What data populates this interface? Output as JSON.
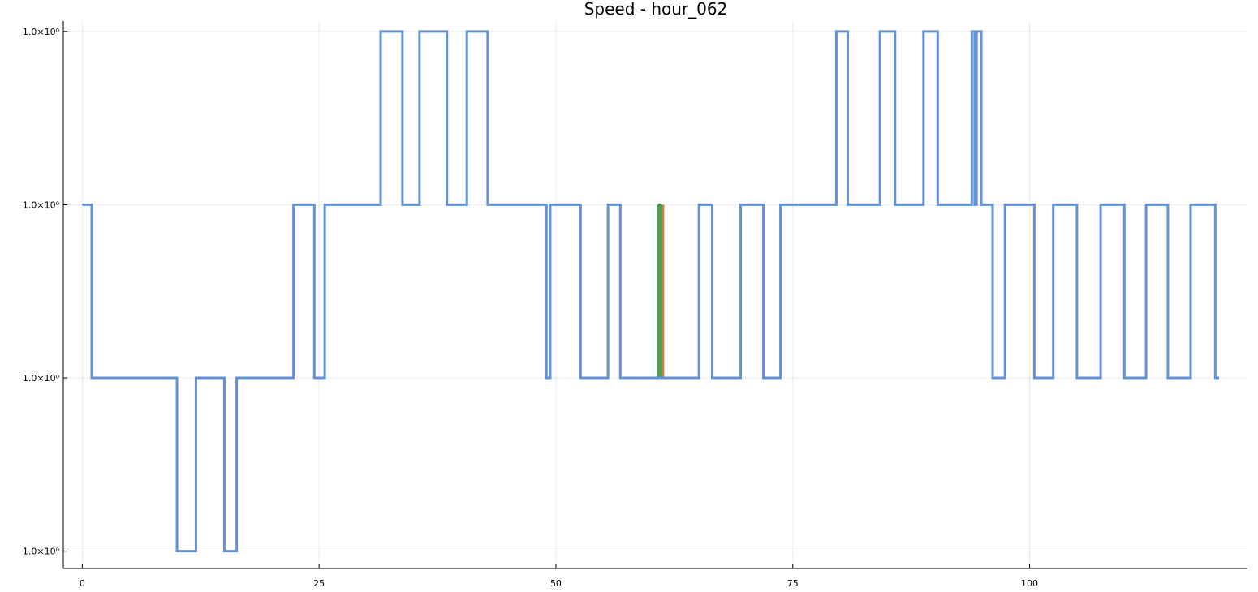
{
  "chart_data": {
    "type": "line",
    "title": "Speed - hour_062",
    "xlabel": "",
    "ylabel": "",
    "xlim": [
      -2,
      123
    ],
    "x_ticks": [
      0,
      25,
      50,
      75,
      100
    ],
    "x_tick_labels": [
      "0",
      "25",
      "50",
      "75",
      "100"
    ],
    "y_scale": "level",
    "y_ticks": [
      0,
      1,
      2,
      3
    ],
    "y_tick_labels": [
      "1.0×10⁰",
      "1.0×10⁰",
      "1.0×10⁰",
      "1.0×10⁰"
    ],
    "ylim": [
      -0.1,
      3.06
    ],
    "grid": true,
    "legend": "none",
    "series": [
      {
        "color": "#e26f46",
        "segments": [
          [
            61.0,
            61.3,
            2,
            1
          ]
        ]
      },
      {
        "color": "#3da44d",
        "segments": [
          [
            60.8,
            61.1,
            1,
            2
          ]
        ]
      },
      {
        "color": "#6392d6",
        "steps": [
          [
            0,
            2
          ],
          [
            1,
            1
          ],
          [
            10,
            0
          ],
          [
            12,
            1
          ],
          [
            15,
            0
          ],
          [
            16.3,
            1
          ],
          [
            22.3,
            2
          ],
          [
            24.5,
            1
          ],
          [
            25.6,
            2
          ],
          [
            31.5,
            3
          ],
          [
            33.8,
            2
          ],
          [
            35.6,
            3
          ],
          [
            38.5,
            2
          ],
          [
            40.6,
            3
          ],
          [
            42.8,
            2
          ],
          [
            49,
            1
          ],
          [
            49.4,
            2
          ],
          [
            52.6,
            1
          ],
          [
            55.5,
            2
          ],
          [
            56.8,
            1
          ],
          [
            65.1,
            2
          ],
          [
            66.5,
            1
          ],
          [
            69.5,
            2
          ],
          [
            71.9,
            1
          ],
          [
            73.7,
            2
          ],
          [
            79.6,
            3
          ],
          [
            80.8,
            2
          ],
          [
            84.2,
            3
          ],
          [
            85.8,
            2
          ],
          [
            88.8,
            3
          ],
          [
            90.3,
            2
          ],
          [
            93.9,
            3
          ],
          [
            94.2,
            2
          ],
          [
            94.4,
            3
          ],
          [
            94.9,
            2
          ],
          [
            96.1,
            1
          ],
          [
            97.4,
            2
          ],
          [
            100.5,
            1
          ],
          [
            102.5,
            2
          ],
          [
            105,
            1
          ],
          [
            107.5,
            2
          ],
          [
            110,
            1
          ],
          [
            112.3,
            2
          ],
          [
            114.6,
            1
          ],
          [
            117,
            2
          ],
          [
            119.6,
            1
          ],
          [
            120,
            1
          ]
        ]
      }
    ]
  }
}
